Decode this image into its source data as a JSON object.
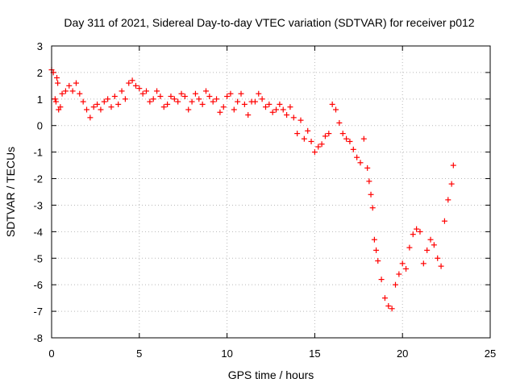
{
  "chart_data": {
    "type": "scatter",
    "title": "Day 311 of 2021, Sidereal Day-to-day VTEC variation (SDTVAR) for receiver p012",
    "xlabel": "GPS time / hours",
    "ylabel": "SDTVAR / TECUs",
    "xlim": [
      0,
      25
    ],
    "ylim": [
      -8,
      3
    ],
    "xticks": [
      0,
      5,
      10,
      15,
      20,
      25
    ],
    "yticks": [
      -8,
      -7,
      -6,
      -5,
      -4,
      -3,
      -2,
      -1,
      0,
      1,
      2,
      3
    ],
    "grid": true,
    "marker": "+",
    "color": "#ff0000",
    "series": [
      {
        "name": "SDTVAR",
        "x": [
          0.0,
          0.1,
          0.2,
          0.25,
          0.3,
          0.35,
          0.4,
          0.5,
          0.6,
          0.8,
          1.0,
          1.2,
          1.4,
          1.6,
          1.8,
          2.0,
          2.2,
          2.4,
          2.6,
          2.8,
          3.0,
          3.2,
          3.4,
          3.6,
          3.8,
          4.0,
          4.2,
          4.4,
          4.6,
          4.8,
          5.0,
          5.2,
          5.4,
          5.6,
          5.8,
          6.0,
          6.2,
          6.4,
          6.6,
          6.8,
          7.0,
          7.2,
          7.4,
          7.6,
          7.8,
          8.0,
          8.2,
          8.4,
          8.6,
          8.8,
          9.0,
          9.2,
          9.4,
          9.6,
          9.8,
          10.0,
          10.2,
          10.4,
          10.6,
          10.8,
          11.0,
          11.2,
          11.4,
          11.6,
          11.8,
          12.0,
          12.2,
          12.4,
          12.6,
          12.8,
          13.0,
          13.2,
          13.4,
          13.6,
          13.8,
          14.0,
          14.2,
          14.4,
          14.6,
          14.8,
          15.0,
          15.2,
          15.4,
          15.6,
          15.8,
          16.0,
          16.2,
          16.4,
          16.6,
          16.8,
          17.0,
          17.2,
          17.4,
          17.6,
          17.8,
          18.0,
          18.1,
          18.2,
          18.3,
          18.4,
          18.5,
          18.6,
          18.8,
          19.0,
          19.2,
          19.4,
          19.6,
          19.8,
          20.0,
          20.2,
          20.4,
          20.6,
          20.8,
          21.0,
          21.2,
          21.4,
          21.6,
          21.8,
          22.0,
          22.2,
          22.4,
          22.6,
          22.8,
          22.9
        ],
        "y": [
          2.1,
          2.0,
          1.0,
          0.9,
          1.8,
          1.6,
          0.6,
          0.7,
          1.2,
          1.3,
          1.5,
          1.3,
          1.6,
          1.2,
          0.9,
          0.6,
          0.3,
          0.7,
          0.8,
          0.6,
          0.9,
          1.0,
          0.7,
          1.1,
          0.8,
          1.3,
          1.0,
          1.6,
          1.7,
          1.5,
          1.4,
          1.2,
          1.3,
          0.9,
          1.0,
          1.3,
          1.1,
          0.7,
          0.8,
          1.1,
          1.0,
          0.9,
          1.2,
          1.1,
          0.6,
          0.9,
          1.2,
          1.0,
          0.8,
          1.3,
          1.1,
          0.9,
          1.0,
          0.5,
          0.7,
          1.1,
          1.2,
          0.6,
          0.9,
          1.2,
          0.8,
          0.4,
          0.9,
          0.9,
          1.2,
          1.0,
          0.7,
          0.8,
          0.5,
          0.6,
          0.8,
          0.6,
          0.4,
          0.7,
          0.3,
          -0.3,
          0.2,
          -0.5,
          -0.2,
          -0.6,
          -1.0,
          -0.8,
          -0.7,
          -0.4,
          -0.3,
          0.8,
          0.6,
          0.1,
          -0.3,
          -0.5,
          -0.6,
          -0.9,
          -1.2,
          -1.4,
          -0.5,
          -1.6,
          -2.1,
          -2.6,
          -3.1,
          -4.3,
          -4.7,
          -5.1,
          -5.8,
          -6.5,
          -6.8,
          -6.9,
          -6.0,
          -5.6,
          -5.2,
          -5.4,
          -4.6,
          -4.1,
          -3.9,
          -4.0,
          -5.2,
          -4.7,
          -4.3,
          -4.5,
          -5.0,
          -5.3,
          -3.6,
          -2.8,
          -2.2,
          -1.5
        ]
      }
    ]
  }
}
